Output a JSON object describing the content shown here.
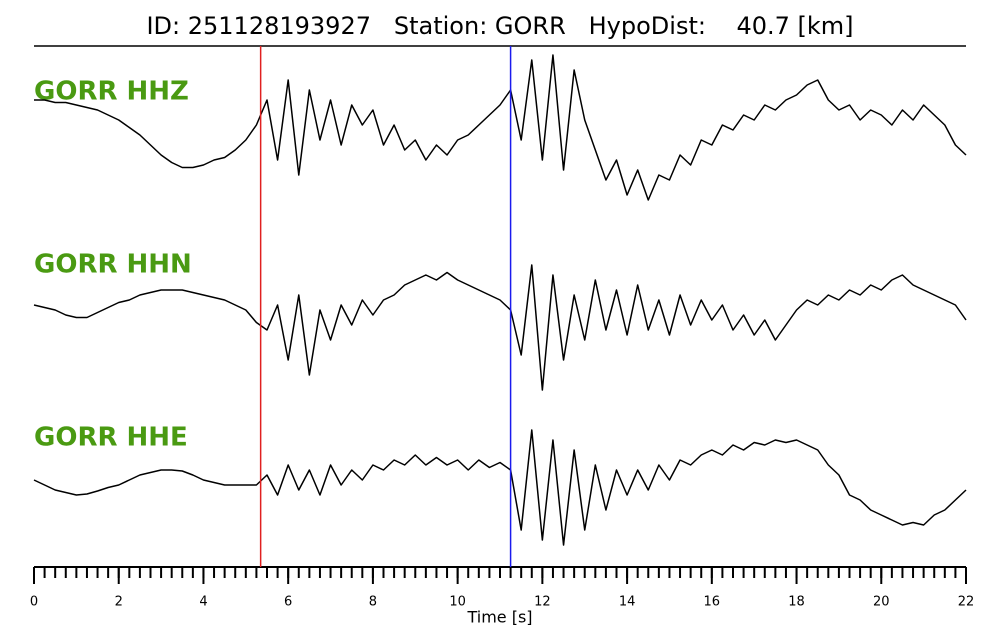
{
  "chart_data": {
    "type": "seismogram",
    "title": "ID: 251128193927   Station: GORR   HypoDist:    40.7 [km]",
    "xlabel": "Time [s]",
    "xlim": [
      0,
      22
    ],
    "xticks": [
      0,
      2,
      4,
      6,
      8,
      10,
      12,
      14,
      16,
      18,
      20,
      22
    ],
    "xminorticks": [
      0,
      0.25,
      0.5,
      0.75,
      1,
      1.25,
      1.5,
      1.75,
      2,
      2.25,
      2.5,
      2.75,
      3,
      3.25,
      3.5,
      3.75,
      4,
      4.25,
      4.5,
      4.75,
      5,
      5.25,
      5.5,
      5.75,
      6,
      6.25,
      6.5,
      6.75,
      7,
      7.25,
      7.5,
      7.75,
      8,
      8.25,
      8.5,
      8.75,
      9,
      9.25,
      9.5,
      9.75,
      10,
      10.25,
      10.5,
      10.75,
      11,
      11.25,
      11.5,
      11.75,
      12,
      12.25,
      12.5,
      12.75,
      13,
      13.25,
      13.5,
      13.75,
      14,
      14.25,
      14.5,
      14.75,
      15,
      15.25,
      15.5,
      15.75,
      16,
      16.25,
      16.5,
      16.75,
      17,
      17.25,
      17.5,
      17.75,
      18,
      18.25,
      18.5,
      18.75,
      19,
      19.25,
      19.5,
      19.75,
      20,
      20.25,
      20.5,
      20.75,
      21,
      21.25,
      21.5,
      21.75,
      22
    ],
    "label_color": "#4a9a12",
    "x": [
      0,
      0.25,
      0.5,
      0.75,
      1,
      1.25,
      1.5,
      1.75,
      2,
      2.25,
      2.5,
      2.75,
      3,
      3.25,
      3.5,
      3.75,
      4,
      4.25,
      4.5,
      4.75,
      5,
      5.25,
      5.5,
      5.75,
      6,
      6.25,
      6.5,
      6.75,
      7,
      7.25,
      7.5,
      7.75,
      8,
      8.25,
      8.5,
      8.75,
      9,
      9.25,
      9.5,
      9.75,
      10,
      10.25,
      10.5,
      10.75,
      11,
      11.25,
      11.5,
      11.75,
      12,
      12.25,
      12.5,
      12.75,
      13,
      13.25,
      13.5,
      13.75,
      14,
      14.25,
      14.5,
      14.75,
      15,
      15.25,
      15.5,
      15.75,
      16,
      16.25,
      16.5,
      16.75,
      17,
      17.25,
      17.5,
      17.75,
      18,
      18.25,
      18.5,
      18.75,
      19,
      19.25,
      19.5,
      19.75,
      20,
      20.25,
      20.5,
      20.75,
      21,
      21.25,
      21.5,
      21.75,
      22
    ],
    "series": [
      {
        "name": "GORR HHZ",
        "color": "#000000",
        "values": [
          0.6,
          0.6,
          0.55,
          0.55,
          0.5,
          0.45,
          0.4,
          0.3,
          0.2,
          0.05,
          -0.1,
          -0.3,
          -0.5,
          -0.65,
          -0.75,
          -0.75,
          -0.7,
          -0.6,
          -0.55,
          -0.4,
          -0.2,
          0.1,
          0.6,
          -0.6,
          1.0,
          -0.9,
          0.8,
          -0.2,
          0.6,
          -0.3,
          0.5,
          0.1,
          0.4,
          -0.3,
          0.1,
          -0.4,
          -0.2,
          -0.6,
          -0.3,
          -0.5,
          -0.2,
          -0.1,
          0.1,
          0.3,
          0.5,
          0.8,
          -0.2,
          1.4,
          -0.6,
          1.5,
          -0.8,
          1.2,
          0.2,
          -0.4,
          -1.0,
          -0.6,
          -1.3,
          -0.8,
          -1.4,
          -0.9,
          -1.0,
          -0.5,
          -0.7,
          -0.2,
          -0.3,
          0.1,
          0.0,
          0.3,
          0.2,
          0.5,
          0.4,
          0.6,
          0.7,
          0.9,
          1.0,
          0.6,
          0.4,
          0.5,
          0.2,
          0.4,
          0.3,
          0.1,
          0.4,
          0.2,
          0.5,
          0.3,
          0.1,
          -0.3,
          -0.5
        ]
      },
      {
        "name": "GORR HHN",
        "color": "#000000",
        "values": [
          0.2,
          0.15,
          0.1,
          0.0,
          -0.05,
          -0.05,
          0.05,
          0.15,
          0.25,
          0.3,
          0.4,
          0.45,
          0.5,
          0.5,
          0.5,
          0.45,
          0.4,
          0.35,
          0.3,
          0.2,
          0.1,
          -0.15,
          -0.3,
          0.2,
          -0.9,
          0.4,
          -1.2,
          0.1,
          -0.5,
          0.2,
          -0.2,
          0.3,
          0.0,
          0.3,
          0.4,
          0.6,
          0.7,
          0.8,
          0.7,
          0.85,
          0.7,
          0.6,
          0.5,
          0.4,
          0.3,
          0.1,
          -0.8,
          1.0,
          -1.5,
          0.8,
          -0.9,
          0.4,
          -0.5,
          0.7,
          -0.3,
          0.5,
          -0.4,
          0.6,
          -0.3,
          0.3,
          -0.4,
          0.4,
          -0.2,
          0.3,
          -0.1,
          0.2,
          -0.3,
          0.0,
          -0.4,
          -0.1,
          -0.5,
          -0.2,
          0.1,
          0.3,
          0.2,
          0.4,
          0.3,
          0.5,
          0.4,
          0.6,
          0.5,
          0.7,
          0.8,
          0.6,
          0.5,
          0.4,
          0.3,
          0.2,
          -0.1
        ]
      },
      {
        "name": "GORR HHE",
        "color": "#000000",
        "values": [
          0.0,
          -0.1,
          -0.2,
          -0.25,
          -0.3,
          -0.28,
          -0.22,
          -0.15,
          -0.1,
          0.0,
          0.1,
          0.15,
          0.2,
          0.2,
          0.18,
          0.1,
          0.0,
          -0.05,
          -0.1,
          -0.1,
          -0.1,
          -0.1,
          0.1,
          -0.3,
          0.3,
          -0.2,
          0.2,
          -0.3,
          0.3,
          -0.1,
          0.2,
          0.0,
          0.3,
          0.2,
          0.4,
          0.3,
          0.5,
          0.3,
          0.45,
          0.3,
          0.4,
          0.2,
          0.4,
          0.25,
          0.35,
          0.2,
          -1.0,
          1.0,
          -1.2,
          0.8,
          -1.3,
          0.6,
          -1.0,
          0.3,
          -0.6,
          0.2,
          -0.3,
          0.2,
          -0.2,
          0.3,
          0.0,
          0.4,
          0.3,
          0.5,
          0.6,
          0.5,
          0.7,
          0.6,
          0.75,
          0.7,
          0.8,
          0.75,
          0.8,
          0.7,
          0.6,
          0.3,
          0.1,
          -0.3,
          -0.4,
          -0.6,
          -0.7,
          -0.8,
          -0.9,
          -0.85,
          -0.9,
          -0.7,
          -0.6,
          -0.4,
          -0.2
        ]
      }
    ],
    "picks": [
      {
        "x": 5.35,
        "color": "#e02020"
      },
      {
        "x": 11.25,
        "color": "#1a1aee"
      }
    ]
  }
}
